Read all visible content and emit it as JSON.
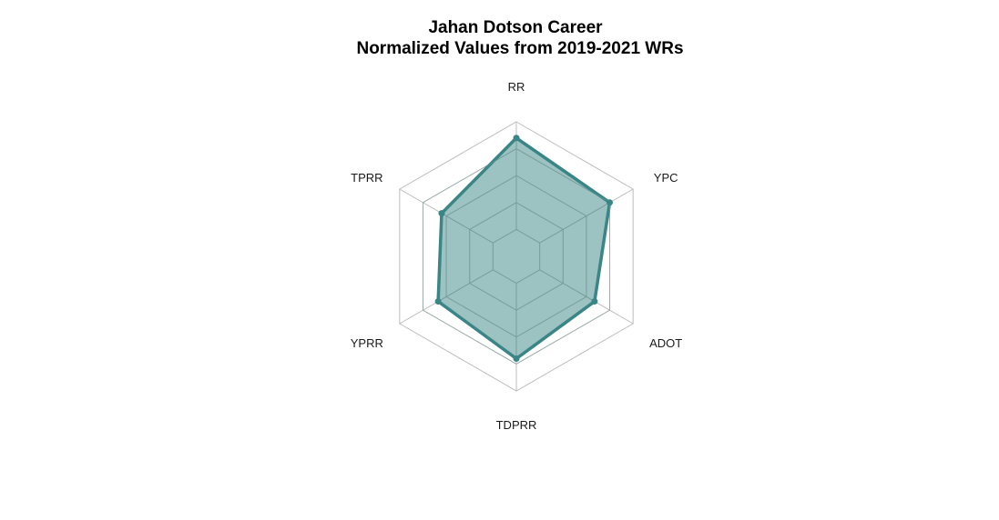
{
  "chart_data": {
    "type": "radar",
    "title": "Jahan Dotson Career",
    "subtitle": "Normalized Values from 2019-2021 WRs",
    "axes": [
      "RR",
      "YPC",
      "ADOT",
      "TDPRR",
      "YPRR",
      "TPRR"
    ],
    "series": [
      {
        "values": [
          0.88,
          0.8,
          0.67,
          0.76,
          0.67,
          0.64
        ],
        "color": "#3a8585",
        "fill": "#3a8585",
        "fill_opacity": 0.5
      }
    ],
    "range": [
      0,
      1
    ],
    "gridlines": [
      0,
      0.2,
      0.4,
      0.6,
      0.8,
      1.0
    ],
    "grid_color": "#bdbdbd",
    "inner_grid_color": "#7a9a9a"
  }
}
